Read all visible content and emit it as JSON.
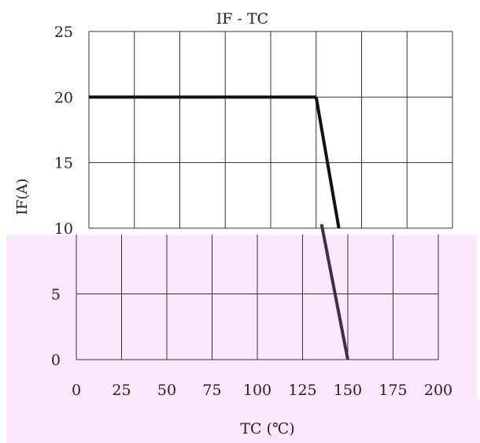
{
  "chart_data": {
    "type": "line",
    "title": "IF - TC",
    "xlabel": "TC (℃)",
    "ylabel": "IF(A)",
    "xlim": [
      0,
      200
    ],
    "ylim": [
      0,
      25
    ],
    "x_ticks": [
      "0",
      "25",
      "50",
      "75",
      "100",
      "125",
      "150",
      "175",
      "200"
    ],
    "y_ticks": [
      "0",
      "5",
      "10",
      "15",
      "20",
      "25"
    ],
    "grid": true,
    "series": [
      {
        "x": [
          0,
          125,
          150
        ],
        "y": [
          20,
          20,
          0
        ]
      }
    ]
  },
  "colors": {
    "line": "#111111",
    "line_lower": "#3a2f4a",
    "grid": "#333333",
    "band": "#fbe6fb"
  }
}
